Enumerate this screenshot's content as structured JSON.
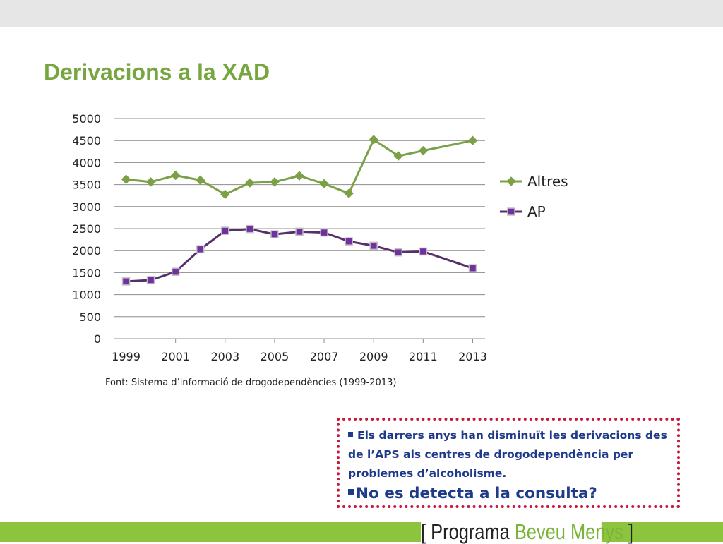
{
  "slide": {
    "title": "Derivacions a la XAD",
    "source_note": "Font: Sistema d’informació de drogodependències (1999-2013)"
  },
  "callout": {
    "point1": "Els darrers anys han disminuït les derivacions des de l’APS als centres de drogodependència per problemes d’alcoholisme.",
    "point2": "No es detecta a la consulta?"
  },
  "branding": {
    "open_bracket": "[",
    "word1": "Programa",
    "word2": "Beveu Menys",
    "close_bracket": "]"
  },
  "colors": {
    "title_green": "#77a640",
    "altres_line": "#7ba046",
    "ap_line": "#55306a",
    "ap_marker": "#7030a0",
    "callout_border": "#c8183c",
    "callout_text": "#1f3a8a",
    "footer_green": "#8cc43e"
  },
  "chart_data": {
    "type": "line",
    "x": [
      1999,
      2000,
      2001,
      2002,
      2003,
      2004,
      2005,
      2006,
      2007,
      2008,
      2009,
      2010,
      2011,
      2013
    ],
    "x_tick_labels": [
      "1999",
      "2001",
      "2003",
      "2005",
      "2007",
      "2009",
      "2011",
      "2013"
    ],
    "y_tick_labels": [
      "0",
      "500",
      "1000",
      "1500",
      "2000",
      "2500",
      "3000",
      "3500",
      "4000",
      "4500",
      "5000"
    ],
    "ylim": [
      0,
      5000
    ],
    "grid": true,
    "legend_position": "right",
    "series": [
      {
        "name": "Altres",
        "marker": "diamond",
        "values": [
          3620,
          3560,
          3710,
          3600,
          3280,
          3540,
          3560,
          3700,
          3520,
          3300,
          4520,
          4150,
          4270,
          4500
        ]
      },
      {
        "name": "AP",
        "marker": "square",
        "values": [
          1300,
          1330,
          1520,
          2030,
          2450,
          2490,
          2370,
          2430,
          2410,
          2210,
          2110,
          1960,
          1980,
          1600
        ]
      }
    ]
  }
}
